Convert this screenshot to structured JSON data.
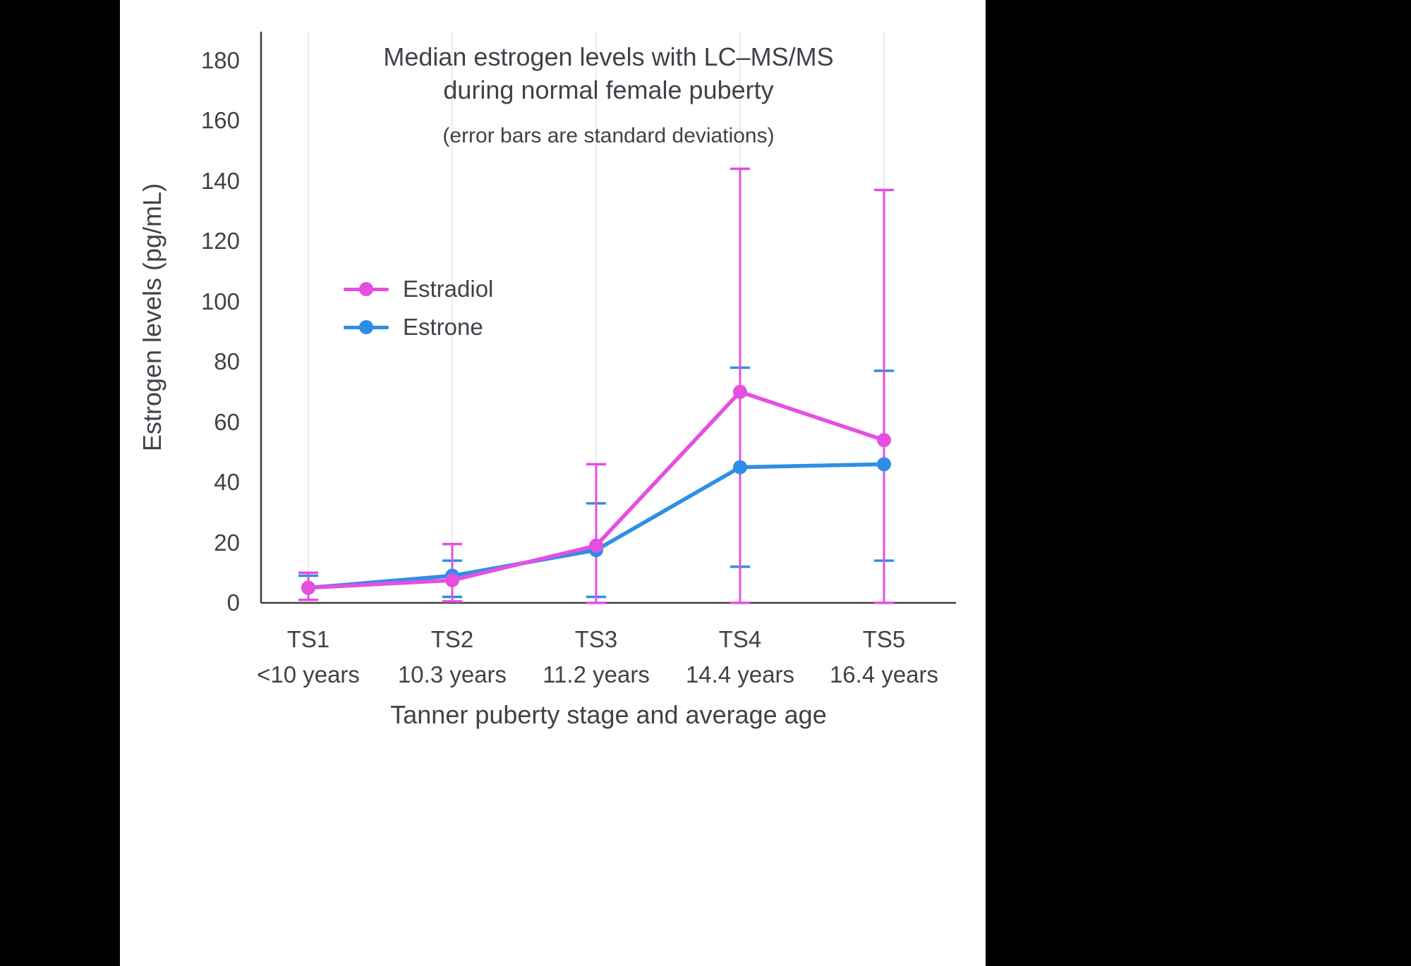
{
  "chart_data": {
    "type": "line",
    "title": "Median estrogen levels with LC–MS/MS\nduring normal female puberty",
    "subtitle": "(error bars are standard deviations)",
    "xlabel": "Tanner puberty stage and average age",
    "ylabel": "Estrogen levels (pg/mL)",
    "categories": [
      "TS1",
      "TS2",
      "TS3",
      "TS4",
      "TS5"
    ],
    "category_sublabels": [
      "<10 years",
      "10.3 years",
      "11.2 years",
      "14.4 years",
      "16.4 years"
    ],
    "y_ticks": [
      0,
      20,
      40,
      60,
      80,
      100,
      120,
      140,
      160,
      180
    ],
    "ylim": [
      0,
      190
    ],
    "grid": "vertical-only",
    "legend_position": "inside-upper-left",
    "error_bar_meaning": "standard deviations",
    "series": [
      {
        "name": "Estradiol",
        "color": "#E44FE2",
        "values": [
          5,
          7.5,
          19,
          70,
          54
        ],
        "err_top": [
          10,
          19.5,
          46,
          144,
          137
        ],
        "err_bottom": [
          1,
          0.5,
          0,
          0,
          0
        ]
      },
      {
        "name": "Estrone",
        "color": "#2E8EE5",
        "values": [
          5,
          9,
          17.5,
          45,
          46
        ],
        "err_top": [
          9,
          14,
          33,
          78,
          77
        ],
        "err_bottom": [
          1,
          2,
          2,
          12,
          14
        ]
      }
    ],
    "axis_color": "#3F3F3F",
    "grid_color": "#E8E8E8",
    "text_color": "#3E4349"
  }
}
